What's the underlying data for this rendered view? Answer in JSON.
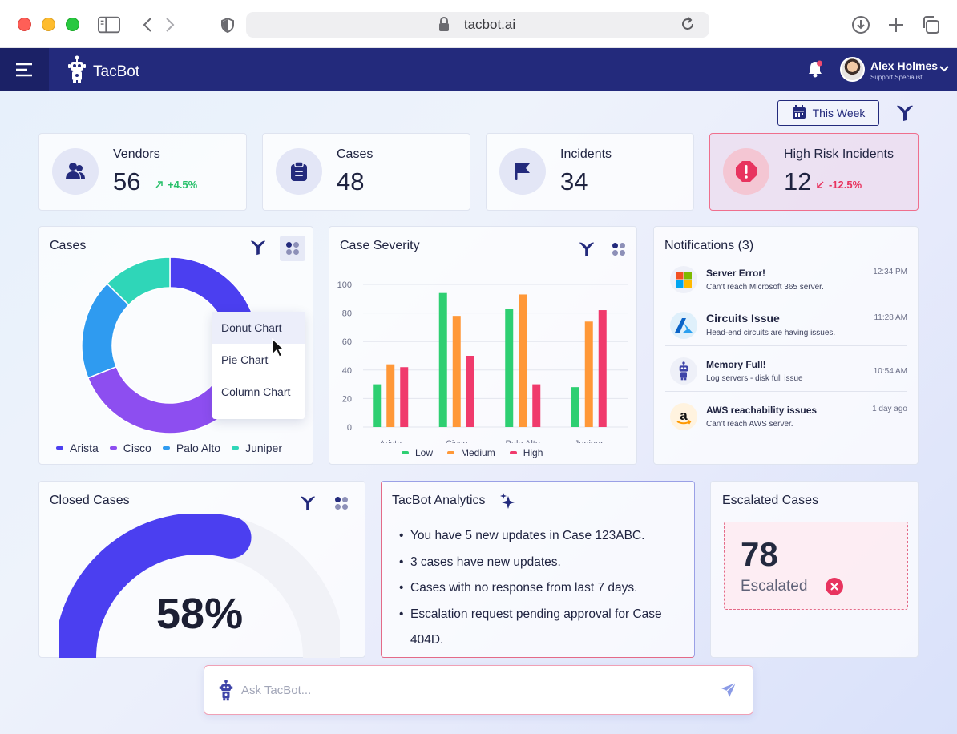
{
  "browser": {
    "url": "tacbot.ai"
  },
  "app": {
    "name": "TacBot"
  },
  "user": {
    "name": "Alex Holmes",
    "role": "Support Specialist"
  },
  "filter": {
    "period_label": "This Week"
  },
  "stats": [
    {
      "label": "Vendors",
      "value": "56",
      "delta": "+4.5%",
      "trend": "up",
      "icon": "users-icon"
    },
    {
      "label": "Cases",
      "value": "48",
      "icon": "clipboard-icon"
    },
    {
      "label": "Incidents",
      "value": "34",
      "icon": "flag-icon"
    },
    {
      "label": "High Risk Incidents",
      "value": "12",
      "delta": "-12.5%",
      "trend": "down",
      "icon": "alert-icon"
    }
  ],
  "cases_card": {
    "title": "Cases",
    "chart_type_options": [
      "Donut Chart",
      "Pie Chart",
      "Column Chart"
    ],
    "selected_option": "Donut Chart"
  },
  "severity_card": {
    "title": "Case Severity"
  },
  "notifications": {
    "title": "Notifications (3)",
    "items": [
      {
        "title": "Server Error!",
        "subtitle": "Can’t reach Microsoft 365 server.",
        "time": "12:34 PM",
        "icon": "microsoft-icon"
      },
      {
        "title": "Circuits Issue",
        "subtitle": "Head-end circuits are having issues.",
        "time": "11:28 AM",
        "icon": "azure-icon"
      },
      {
        "title": "Memory Full!",
        "subtitle": "Log servers - disk full issue",
        "time": "10:54 AM",
        "icon": "robot-icon"
      },
      {
        "title": "AWS reachability issues",
        "subtitle": "Can’t reach AWS server.",
        "time": "1 day ago",
        "icon": "amazon-icon"
      }
    ]
  },
  "closed_cases": {
    "title": "Closed Cases",
    "value_label": "58%",
    "fraction": 0.58
  },
  "analytics": {
    "title": "TacBot Analytics",
    "items": [
      "You have 5 new updates in Case 123ABC.",
      "3 cases have new updates.",
      "Cases with no response from last 7 days.",
      "Escalation request pending approval for Case 404D."
    ]
  },
  "escalated": {
    "title": "Escalated Cases",
    "value": "78",
    "label": "Escalated"
  },
  "ask": {
    "placeholder": "Ask TacBot..."
  },
  "colors": {
    "navy": "#232a7c",
    "arista": "#4b3ff0",
    "cisco": "#8d4ef0",
    "palo_alto": "#2f9bf0",
    "juniper": "#2fd6b8",
    "low": "#2ecf72",
    "medium": "#ff9838",
    "high": "#f03a6c"
  },
  "chart_data": [
    {
      "type": "pie",
      "variant": "donut",
      "categories": [
        "Arista",
        "Cisco",
        "Palo Alto",
        "Juniper"
      ],
      "values": [
        24,
        36,
        16,
        11
      ],
      "legend": "bottom"
    },
    {
      "type": "bar",
      "categories": [
        "Arista",
        "Cisco",
        "Palo Alto",
        "Juniper"
      ],
      "series": [
        {
          "name": "Low",
          "values": [
            30,
            94,
            83,
            28
          ]
        },
        {
          "name": "Medium",
          "values": [
            44,
            78,
            93,
            74
          ]
        },
        {
          "name": "High",
          "values": [
            42,
            50,
            30,
            82
          ]
        }
      ],
      "yticks": [
        "0",
        "20",
        "40",
        "60",
        "80",
        "100"
      ],
      "ylim": [
        0,
        100
      ],
      "grid": true,
      "legend": "bottom"
    }
  ]
}
